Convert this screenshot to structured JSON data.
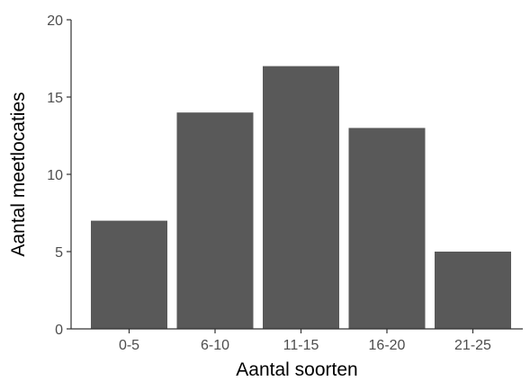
{
  "chart_data": {
    "type": "bar",
    "categories": [
      "0-5",
      "6-10",
      "11-15",
      "16-20",
      "21-25"
    ],
    "values": [
      7,
      14,
      17,
      13,
      5
    ],
    "xlabel": "Aantal soorten",
    "ylabel": "Aantal meetlocaties",
    "ylim": [
      0,
      20
    ],
    "yticks": [
      0,
      5,
      10,
      15,
      20
    ],
    "grid": false,
    "legend": "none",
    "bar_color": "#595959"
  }
}
